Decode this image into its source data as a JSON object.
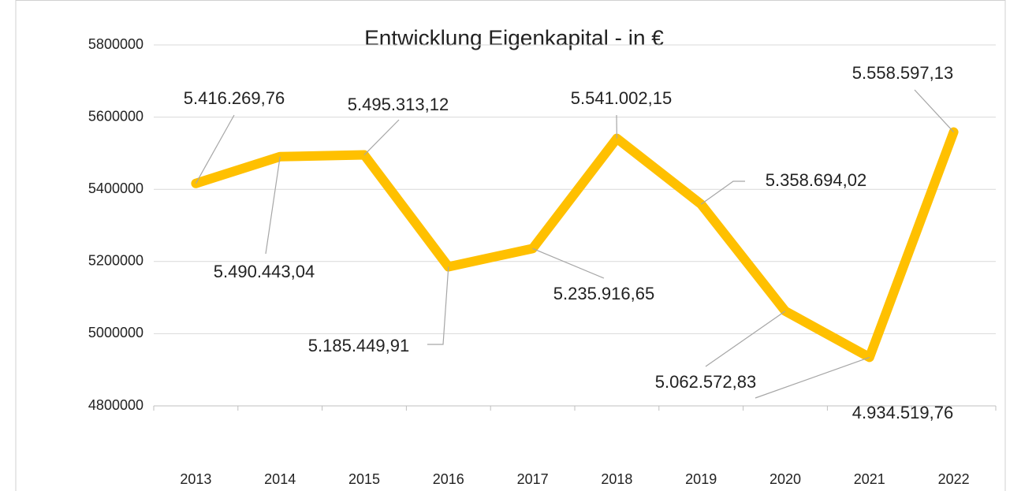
{
  "chart_data": {
    "type": "line",
    "title": "Entwicklung Eigenkapital - in €",
    "categories": [
      "2013",
      "2014",
      "2015",
      "2016",
      "2017",
      "2018",
      "2019",
      "2020",
      "2021",
      "2022"
    ],
    "values": [
      5416269.76,
      5490443.04,
      5495313.12,
      5185449.91,
      5235916.65,
      5541002.15,
      5358694.02,
      5062572.83,
      4934519.76,
      5558597.13
    ],
    "value_labels": [
      "5.416.269,76",
      "5.490.443,04",
      "5.495.313,12",
      "5.185.449,91",
      "5.235.916,65",
      "5.541.002,15",
      "5.358.694,02",
      "5.062.572,83",
      "4.934.519,76",
      "5.558.597,13"
    ],
    "color": "#ffc000",
    "ylim": [
      4800000,
      5800000
    ],
    "yticks": [
      4800000,
      5000000,
      5200000,
      5400000,
      5600000,
      5800000
    ],
    "grid": true
  }
}
